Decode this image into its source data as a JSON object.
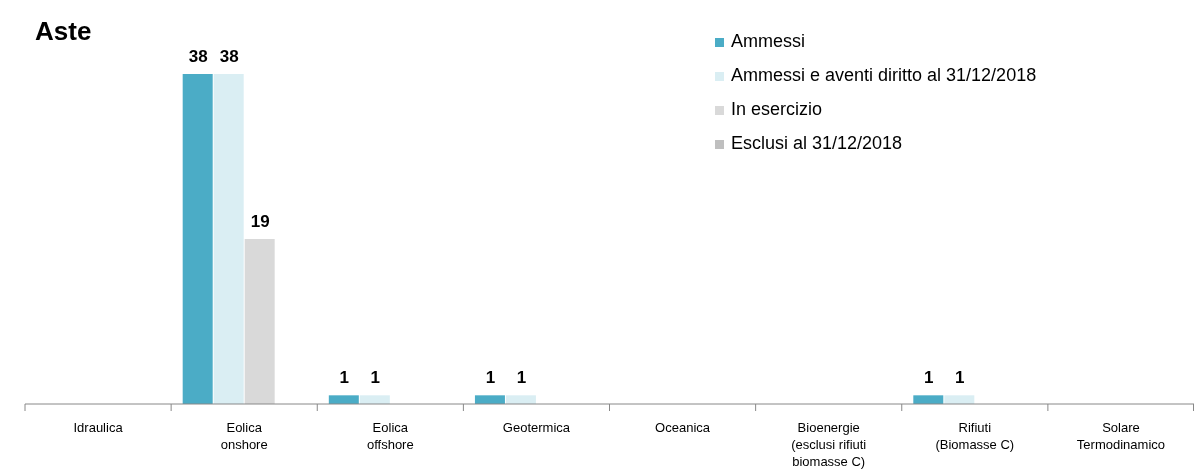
{
  "chart_data": {
    "type": "bar",
    "title": "Aste",
    "categories": [
      "Idraulica",
      "Eolica onshore",
      "Eolica offshore",
      "Geotermica",
      "Oceanica",
      "Bioenergie (esclusi rifiuti biomasse C)",
      "Rifiuti (Biomasse C)",
      "Solare Termodinamico"
    ],
    "series": [
      {
        "name": "Ammessi",
        "color": "#4bacc6",
        "values": [
          0,
          38,
          1,
          1,
          0,
          0,
          1,
          0
        ],
        "value_labels": [
          null,
          "38",
          "1",
          "1",
          null,
          null,
          "1",
          null
        ]
      },
      {
        "name": "Ammessi e aventi diritto al 31/12/2018",
        "color": "#daeef3",
        "values": [
          0,
          38,
          1,
          1,
          0,
          0,
          1,
          0
        ],
        "value_labels": [
          null,
          "38",
          "1",
          "1",
          null,
          null,
          "1",
          null
        ]
      },
      {
        "name": "In esercizio",
        "color": "#d9d9d9",
        "values": [
          0,
          19,
          0,
          0,
          0,
          0,
          0,
          0
        ],
        "value_labels": [
          null,
          "19",
          null,
          null,
          null,
          null,
          null,
          null
        ]
      },
      {
        "name": "Esclusi al 31/12/2018",
        "color": "#bfbfbf",
        "values": [
          0,
          0,
          0,
          0,
          0,
          0,
          0,
          0
        ],
        "value_labels": [
          null,
          null,
          null,
          null,
          null,
          null,
          null,
          null
        ]
      }
    ],
    "legend": "top right"
  }
}
